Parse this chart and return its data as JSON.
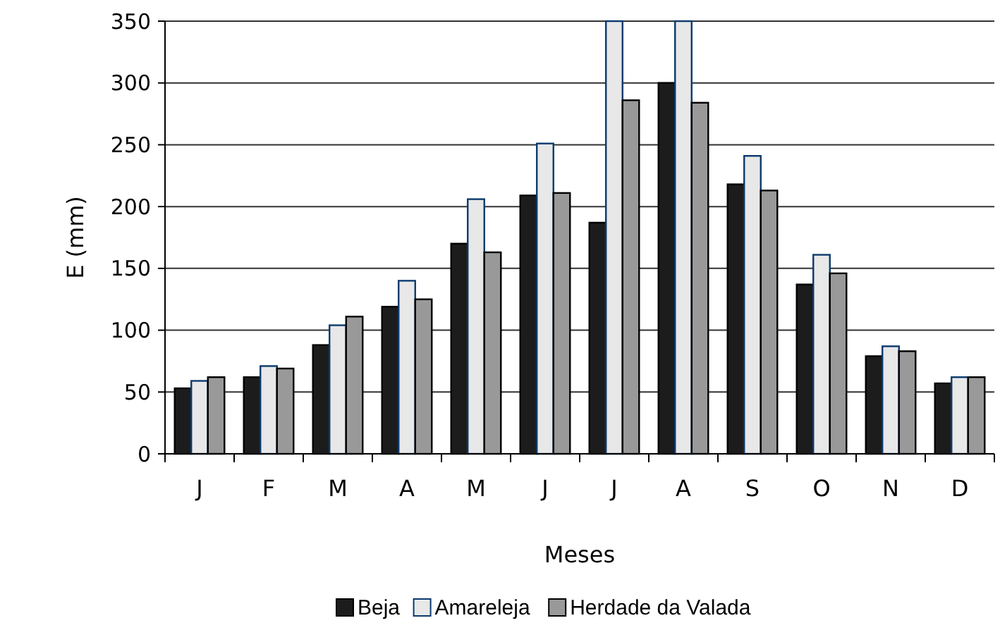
{
  "chart_data": {
    "type": "bar",
    "xlabel": "Meses",
    "ylabel": "E (mm)",
    "categories": [
      "J",
      "F",
      "M",
      "A",
      "M",
      "J",
      "J",
      "A",
      "S",
      "O",
      "N",
      "D"
    ],
    "series": [
      {
        "name": "Beja",
        "color": "#1c1c1c",
        "values": [
          53,
          62,
          88,
          119,
          170,
          209,
          187,
          300,
          218,
          137,
          79,
          57
        ]
      },
      {
        "name": "Amareleja",
        "color": "#e8e8e8",
        "values": [
          59,
          71,
          104,
          140,
          206,
          251,
          350,
          350,
          241,
          161,
          87,
          62
        ]
      },
      {
        "name": "Herdade da Valada",
        "color": "#999999",
        "values": [
          62,
          69,
          111,
          125,
          163,
          211,
          286,
          284,
          213,
          146,
          83,
          62
        ]
      }
    ],
    "ylim": [
      0,
      350
    ],
    "yticks": [
      0,
      50,
      100,
      150,
      200,
      250,
      300,
      350
    ],
    "grid": "y",
    "legend": "bottom"
  }
}
